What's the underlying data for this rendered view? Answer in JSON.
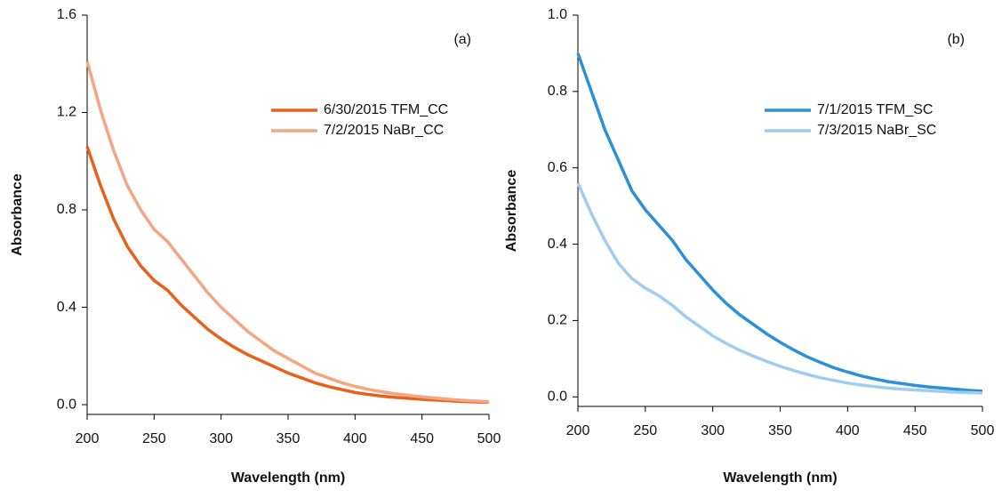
{
  "chart_data": [
    {
      "type": "line",
      "annotation": "(a)",
      "x_label": "Wavelength (nm)",
      "y_label": "Absorbance",
      "x": [
        200,
        210,
        220,
        230,
        240,
        250,
        260,
        270,
        280,
        290,
        300,
        310,
        320,
        330,
        340,
        350,
        360,
        370,
        380,
        390,
        400,
        410,
        420,
        430,
        440,
        450,
        460,
        470,
        480,
        490,
        500
      ],
      "series": [
        {
          "name": "6/30/2015 TFM_CC",
          "color": "#e8601c",
          "values": [
            1.06,
            0.9,
            0.76,
            0.65,
            0.57,
            0.51,
            0.47,
            0.41,
            0.36,
            0.31,
            0.27,
            0.235,
            0.205,
            0.18,
            0.155,
            0.13,
            0.11,
            0.09,
            0.075,
            0.062,
            0.05,
            0.042,
            0.035,
            0.03,
            0.026,
            0.022,
            0.019,
            0.016,
            0.013,
            0.011,
            0.01
          ]
        },
        {
          "name": "7/2/2015 NaBr_CC",
          "color": "#f4a582",
          "values": [
            1.41,
            1.21,
            1.04,
            0.9,
            0.8,
            0.72,
            0.67,
            0.6,
            0.53,
            0.46,
            0.4,
            0.35,
            0.3,
            0.26,
            0.22,
            0.19,
            0.16,
            0.13,
            0.11,
            0.09,
            0.075,
            0.063,
            0.053,
            0.045,
            0.038,
            0.032,
            0.027,
            0.022,
            0.018,
            0.015,
            0.012
          ]
        }
      ],
      "xlim": [
        200,
        500
      ],
      "xticks": [
        200,
        250,
        300,
        350,
        400,
        450,
        500
      ],
      "ylim": [
        -0.04,
        1.6
      ],
      "yticks": [
        {
          "value": 0,
          "label": "0.0"
        },
        0.4,
        0.8,
        1.2,
        1.6
      ],
      "legend": "upper right",
      "grid": false
    },
    {
      "type": "line",
      "annotation": "(b)",
      "x_label": "Wavelength (nm)",
      "y_label": "Absorbance",
      "x": [
        200,
        210,
        220,
        230,
        240,
        250,
        260,
        270,
        280,
        290,
        300,
        310,
        320,
        330,
        340,
        350,
        360,
        370,
        380,
        390,
        400,
        410,
        420,
        430,
        440,
        450,
        460,
        470,
        480,
        490,
        500
      ],
      "series": [
        {
          "name": "7/1/2015 TFM_SC",
          "color": "#2b8fd9",
          "values": [
            0.9,
            0.8,
            0.7,
            0.62,
            0.54,
            0.49,
            0.45,
            0.41,
            0.36,
            0.32,
            0.28,
            0.245,
            0.215,
            0.19,
            0.165,
            0.143,
            0.123,
            0.105,
            0.09,
            0.076,
            0.065,
            0.055,
            0.047,
            0.04,
            0.035,
            0.03,
            0.026,
            0.023,
            0.02,
            0.017,
            0.015
          ]
        },
        {
          "name": "7/3/2015 NaBr_SC",
          "color": "#9fcdf0",
          "values": [
            0.56,
            0.48,
            0.41,
            0.35,
            0.31,
            0.285,
            0.265,
            0.24,
            0.21,
            0.185,
            0.16,
            0.14,
            0.122,
            0.107,
            0.093,
            0.08,
            0.069,
            0.059,
            0.05,
            0.043,
            0.036,
            0.031,
            0.027,
            0.023,
            0.02,
            0.018,
            0.016,
            0.014,
            0.012,
            0.011,
            0.01
          ]
        }
      ],
      "xlim": [
        200,
        500
      ],
      "xticks": [
        200,
        250,
        300,
        350,
        400,
        450,
        500
      ],
      "ylim": [
        -0.025,
        1.0
      ],
      "yticks": [
        {
          "value": 0,
          "label": "0.0"
        },
        0.2,
        0.4,
        0.6,
        0.8,
        {
          "value": 1,
          "label": "1.0"
        }
      ],
      "legend": "upper right",
      "grid": false
    }
  ]
}
